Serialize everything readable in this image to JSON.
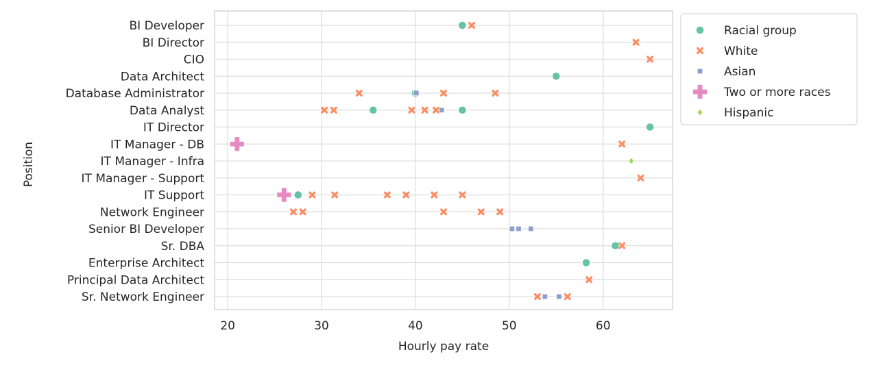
{
  "chart_data": {
    "type": "scatter",
    "xlabel": "Hourly pay rate",
    "ylabel": "Position",
    "xlim": [
      18.6,
      67.4
    ],
    "xticks": [
      20,
      30,
      40,
      50,
      60
    ],
    "grid": true,
    "legend_position": "outside-right",
    "categories": [
      "BI Developer",
      "BI Director",
      "CIO",
      "Data Architect",
      "Database Administrator",
      "Data Analyst",
      "IT Director",
      "IT Manager - DB",
      "IT Manager - Infra",
      "IT Manager - Support",
      "IT Support",
      "Network Engineer",
      "Senior BI Developer",
      "Sr. DBA",
      "Enterprise Architect",
      "Principal Data Architect",
      "Sr. Network Engineer"
    ],
    "legend_title": "Racial group",
    "series": [
      {
        "name": "Racial group",
        "color": "#66c2a5",
        "marker": "circle",
        "points": [
          {
            "x": 45.0,
            "y": "BI Developer"
          },
          {
            "x": 55.0,
            "y": "Data Architect"
          },
          {
            "x": 40.0,
            "y": "Database Administrator"
          },
          {
            "x": 35.5,
            "y": "Data Analyst"
          },
          {
            "x": 45.0,
            "y": "Data Analyst"
          },
          {
            "x": 65.0,
            "y": "IT Director"
          },
          {
            "x": 27.5,
            "y": "IT Support"
          },
          {
            "x": 61.3,
            "y": "Sr. DBA"
          },
          {
            "x": 58.2,
            "y": "Enterprise Architect"
          }
        ]
      },
      {
        "name": "White",
        "color": "#fc8d62",
        "marker": "x",
        "points": [
          {
            "x": 46.0,
            "y": "BI Developer"
          },
          {
            "x": 63.5,
            "y": "BI Director"
          },
          {
            "x": 65.0,
            "y": "CIO"
          },
          {
            "x": 34.0,
            "y": "Database Administrator"
          },
          {
            "x": 43.0,
            "y": "Database Administrator"
          },
          {
            "x": 48.5,
            "y": "Database Administrator"
          },
          {
            "x": 30.3,
            "y": "Data Analyst"
          },
          {
            "x": 31.3,
            "y": "Data Analyst"
          },
          {
            "x": 39.6,
            "y": "Data Analyst"
          },
          {
            "x": 41.0,
            "y": "Data Analyst"
          },
          {
            "x": 42.2,
            "y": "Data Analyst"
          },
          {
            "x": 62.0,
            "y": "IT Manager - DB"
          },
          {
            "x": 64.0,
            "y": "IT Manager - Support"
          },
          {
            "x": 29.0,
            "y": "IT Support"
          },
          {
            "x": 31.4,
            "y": "IT Support"
          },
          {
            "x": 37.0,
            "y": "IT Support"
          },
          {
            "x": 39.0,
            "y": "IT Support"
          },
          {
            "x": 42.0,
            "y": "IT Support"
          },
          {
            "x": 45.0,
            "y": "IT Support"
          },
          {
            "x": 27.0,
            "y": "Network Engineer"
          },
          {
            "x": 28.0,
            "y": "Network Engineer"
          },
          {
            "x": 43.0,
            "y": "Network Engineer"
          },
          {
            "x": 47.0,
            "y": "Network Engineer"
          },
          {
            "x": 49.0,
            "y": "Network Engineer"
          },
          {
            "x": 62.0,
            "y": "Sr. DBA"
          },
          {
            "x": 58.5,
            "y": "Principal Data Architect"
          },
          {
            "x": 53.0,
            "y": "Sr. Network Engineer"
          },
          {
            "x": 56.2,
            "y": "Sr. Network Engineer"
          }
        ]
      },
      {
        "name": "Asian",
        "color": "#8da0cb",
        "marker": "square",
        "points": [
          {
            "x": 40.1,
            "y": "Database Administrator"
          },
          {
            "x": 42.8,
            "y": "Data Analyst"
          },
          {
            "x": 50.3,
            "y": "Senior BI Developer"
          },
          {
            "x": 51.0,
            "y": "Senior BI Developer"
          },
          {
            "x": 52.3,
            "y": "Senior BI Developer"
          },
          {
            "x": 53.8,
            "y": "Sr. Network Engineer"
          },
          {
            "x": 55.3,
            "y": "Sr. Network Engineer"
          }
        ]
      },
      {
        "name": "Two or more races",
        "color": "#e78ac3",
        "marker": "plus",
        "points": [
          {
            "x": 21.0,
            "y": "IT Manager - DB"
          },
          {
            "x": 26.0,
            "y": "IT Support"
          }
        ]
      },
      {
        "name": "Hispanic",
        "color": "#a6d854",
        "marker": "diamond",
        "points": [
          {
            "x": 63.0,
            "y": "IT Manager - Infra"
          }
        ]
      }
    ]
  }
}
